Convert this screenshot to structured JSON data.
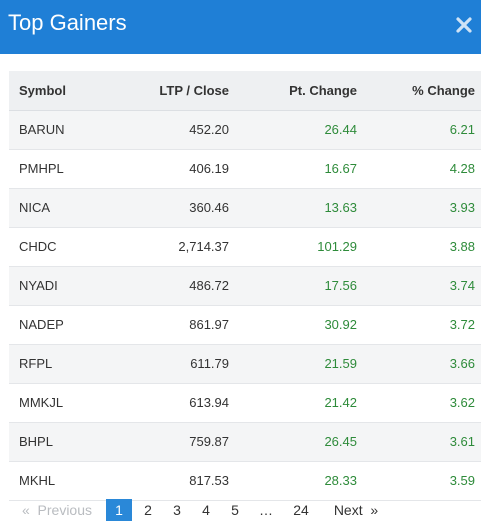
{
  "header": {
    "title": "Top Gainers",
    "close_glyph": "✖"
  },
  "colors": {
    "header_bg": "#1f7fd6",
    "positive": "#2e8b3a",
    "current_page": "#2a88d8"
  },
  "table": {
    "columns": [
      "Symbol",
      "LTP / Close",
      "Pt. Change",
      "% Change"
    ],
    "rows": [
      {
        "symbol": "BARUN",
        "ltp": "452.20",
        "pt": "26.44",
        "pct": "6.21"
      },
      {
        "symbol": "PMHPL",
        "ltp": "406.19",
        "pt": "16.67",
        "pct": "4.28"
      },
      {
        "symbol": "NICA",
        "ltp": "360.46",
        "pt": "13.63",
        "pct": "3.93"
      },
      {
        "symbol": "CHDC",
        "ltp": "2,714.37",
        "pt": "101.29",
        "pct": "3.88"
      },
      {
        "symbol": "NYADI",
        "ltp": "486.72",
        "pt": "17.56",
        "pct": "3.74"
      },
      {
        "symbol": "NADEP",
        "ltp": "861.97",
        "pt": "30.92",
        "pct": "3.72"
      },
      {
        "symbol": "RFPL",
        "ltp": "611.79",
        "pt": "21.59",
        "pct": "3.66"
      },
      {
        "symbol": "MMKJL",
        "ltp": "613.94",
        "pt": "21.42",
        "pct": "3.62"
      },
      {
        "symbol": "BHPL",
        "ltp": "759.87",
        "pt": "26.45",
        "pct": "3.61"
      },
      {
        "symbol": "MKHL",
        "ltp": "817.53",
        "pt": "28.33",
        "pct": "3.59"
      }
    ]
  },
  "pagination": {
    "prev": "«  Previous",
    "pages": [
      "1",
      "2",
      "3",
      "4",
      "5",
      "…",
      "24"
    ],
    "current": "1",
    "next": "Next  »"
  }
}
